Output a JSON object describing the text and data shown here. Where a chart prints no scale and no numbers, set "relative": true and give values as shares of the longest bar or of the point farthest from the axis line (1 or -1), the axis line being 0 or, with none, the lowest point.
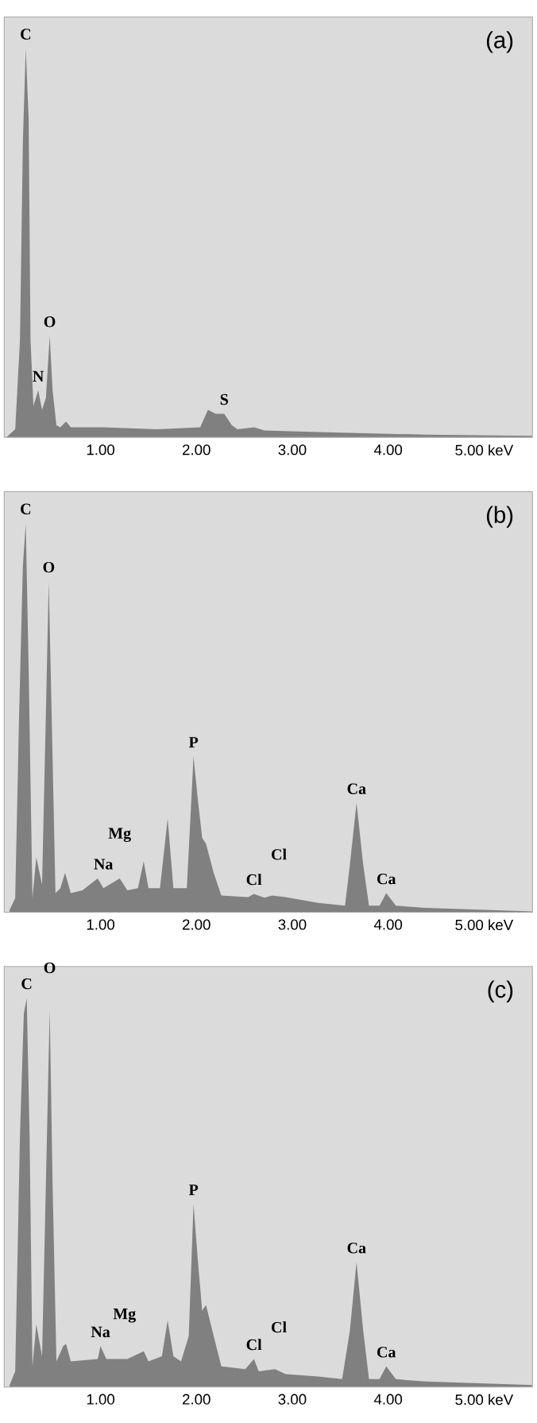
{
  "chart_data": [
    {
      "type": "area",
      "title": "(a)",
      "relative": true,
      "tick_labels": "x",
      "xlim": [
        0,
        5.5
      ],
      "xticks": [
        {
          "value": 1,
          "label": "1.00"
        },
        {
          "value": 2,
          "label": "2.00"
        },
        {
          "value": 3,
          "label": "3.00"
        },
        {
          "value": 4,
          "label": "4.00"
        },
        {
          "value": 5,
          "label": "5.00 keV"
        }
      ],
      "series": [
        {
          "color": "#808080",
          "x": [
            0.02,
            0.11,
            0.16,
            0.19,
            0.22,
            0.25,
            0.27,
            0.3,
            0.35,
            0.39,
            0.43,
            0.47,
            0.5,
            0.54,
            0.58,
            0.64,
            0.69,
            1.03,
            1.59,
            2.04,
            2.12,
            2.2,
            2.29,
            2.37,
            2.43,
            2.6,
            2.71,
            3.27,
            4.39,
            5.5
          ],
          "values": [
            0,
            0.02,
            0.25,
            0.76,
            1.0,
            0.82,
            0.25,
            0.08,
            0.12,
            0.07,
            0.1,
            0.26,
            0.12,
            0.03,
            0.025,
            0.04,
            0.025,
            0.025,
            0.02,
            0.025,
            0.07,
            0.06,
            0.06,
            0.03,
            0.02,
            0.025,
            0.017,
            0.013,
            0.006,
            0.003
          ]
        }
      ],
      "annotations": [
        {
          "text": "C",
          "x": 0.22,
          "y": 1.0
        },
        {
          "text": "N",
          "x": 0.35,
          "y": 0.12
        },
        {
          "text": "O",
          "x": 0.47,
          "y": 0.26
        },
        {
          "text": "S",
          "x": 2.29,
          "y": 0.06
        }
      ]
    },
    {
      "type": "area",
      "title": "(b)",
      "relative": true,
      "tick_labels": "x",
      "xlim": [
        0,
        5.5
      ],
      "xticks": [
        {
          "value": 1,
          "label": "1.00"
        },
        {
          "value": 2,
          "label": "2.00"
        },
        {
          "value": 3,
          "label": "3.00"
        },
        {
          "value": 4,
          "label": "4.00"
        },
        {
          "value": 5,
          "label": "5.00 keV"
        }
      ],
      "series": [
        {
          "color": "#808080",
          "x": [
            0.05,
            0.11,
            0.15,
            0.19,
            0.22,
            0.25,
            0.29,
            0.33,
            0.39,
            0.43,
            0.46,
            0.49,
            0.53,
            0.58,
            0.63,
            0.69,
            0.81,
            0.97,
            1.03,
            1.2,
            1.28,
            1.39,
            1.45,
            1.5,
            1.62,
            1.7,
            1.76,
            1.9,
            1.97,
            2.01,
            2.06,
            2.1,
            2.18,
            2.26,
            2.54,
            2.6,
            2.71,
            2.79,
            2.93,
            3.27,
            3.55,
            3.6,
            3.67,
            3.74,
            3.8,
            3.91,
            3.98,
            4.08,
            4.39,
            5.5
          ],
          "values": [
            0.004,
            0.035,
            0.5,
            0.89,
            1.0,
            0.63,
            0.035,
            0.14,
            0.07,
            0.51,
            0.85,
            0.51,
            0.048,
            0.06,
            0.1,
            0.048,
            0.055,
            0.086,
            0.061,
            0.086,
            0.055,
            0.061,
            0.13,
            0.061,
            0.061,
            0.24,
            0.061,
            0.061,
            0.4,
            0.3,
            0.19,
            0.175,
            0.1,
            0.042,
            0.038,
            0.046,
            0.036,
            0.042,
            0.038,
            0.023,
            0.016,
            0.12,
            0.28,
            0.12,
            0.016,
            0.016,
            0.048,
            0.016,
            0.01,
            0.001
          ]
        }
      ],
      "annotations": [
        {
          "text": "C",
          "x": 0.22,
          "y": 1.0
        },
        {
          "text": "O",
          "x": 0.46,
          "y": 0.85
        },
        {
          "text": "Na",
          "x": 1.03,
          "y": 0.086
        },
        {
          "text": "Mg",
          "x": 1.2,
          "y": 0.086
        },
        {
          "text": "P",
          "x": 1.97,
          "y": 0.4
        },
        {
          "text": "Cl",
          "x": 2.6,
          "y": 0.046
        },
        {
          "text": "Cl",
          "x": 2.86,
          "y": 0.04
        },
        {
          "text": "Ca",
          "x": 3.67,
          "y": 0.28
        },
        {
          "text": "Ca",
          "x": 3.98,
          "y": 0.048
        }
      ]
    },
    {
      "type": "area",
      "title": "(c)",
      "relative": true,
      "tick_labels": "x",
      "xlim": [
        0,
        5.5
      ],
      "xticks": [
        {
          "value": 1,
          "label": "1.00"
        },
        {
          "value": 2,
          "label": "2.00"
        },
        {
          "value": 3,
          "label": "3.00"
        },
        {
          "value": 4,
          "label": "4.00"
        },
        {
          "value": 5,
          "label": "5.00 keV"
        }
      ],
      "series": [
        {
          "color": "#808080",
          "x": [
            0.05,
            0.11,
            0.16,
            0.2,
            0.23,
            0.26,
            0.29,
            0.33,
            0.39,
            0.43,
            0.47,
            0.5,
            0.54,
            0.61,
            0.64,
            0.69,
            0.97,
            1.0,
            1.06,
            1.2,
            1.28,
            1.45,
            1.5,
            1.64,
            1.7,
            1.76,
            1.84,
            1.92,
            1.97,
            2.01,
            2.06,
            2.1,
            2.18,
            2.26,
            2.51,
            2.6,
            2.65,
            2.82,
            2.93,
            3.27,
            3.52,
            3.6,
            3.67,
            3.74,
            3.8,
            3.91,
            3.98,
            4.08,
            4.39,
            5.5
          ],
          "values": [
            0.003,
            0.039,
            0.65,
            0.96,
            1.0,
            0.65,
            0.052,
            0.16,
            0.078,
            0.52,
            0.97,
            0.52,
            0.065,
            0.104,
            0.11,
            0.065,
            0.071,
            0.104,
            0.071,
            0.071,
            0.071,
            0.091,
            0.065,
            0.078,
            0.17,
            0.078,
            0.065,
            0.13,
            0.47,
            0.34,
            0.195,
            0.21,
            0.13,
            0.052,
            0.045,
            0.071,
            0.039,
            0.045,
            0.032,
            0.026,
            0.019,
            0.143,
            0.32,
            0.143,
            0.019,
            0.019,
            0.052,
            0.019,
            0.013,
            0.004
          ]
        }
      ],
      "annotations": [
        {
          "text": "C",
          "x": 0.23,
          "y": 1.0
        },
        {
          "text": "O",
          "x": 0.47,
          "y": 0.97
        },
        {
          "text": "Na",
          "x": 1.0,
          "y": 0.104
        },
        {
          "text": "Mg",
          "x": 1.25,
          "y": 0.071
        },
        {
          "text": "P",
          "x": 1.97,
          "y": 0.47
        },
        {
          "text": "Cl",
          "x": 2.6,
          "y": 0.071
        },
        {
          "text": "Cl",
          "x": 2.86,
          "y": 0.045
        },
        {
          "text": "Ca",
          "x": 3.67,
          "y": 0.32
        },
        {
          "text": "Ca",
          "x": 3.98,
          "y": 0.052
        }
      ]
    }
  ]
}
